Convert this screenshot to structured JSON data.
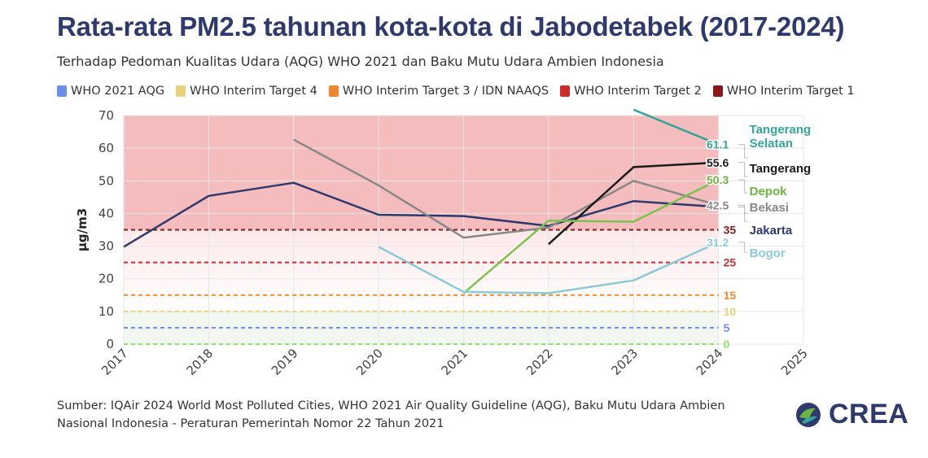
{
  "title": "Rata-rata PM2.5 tahunan kota-kota di Jabodetabek (2017-2024)",
  "subtitle": "Terhadap Pedoman Kualitas Udara (AQG) WHO 2021 dan Baku Mutu Udara Ambien Indonesia",
  "legend": [
    {
      "label": "WHO 2021 AQG",
      "color": "#6b8ee8"
    },
    {
      "label": "WHO Interim Target 4",
      "color": "#e8d27a"
    },
    {
      "label": "WHO Interim Target 3 / IDN NAAQS",
      "color": "#f0892e"
    },
    {
      "label": "WHO Interim Target 2",
      "color": "#cf2b2b"
    },
    {
      "label": "WHO Interim Target 1",
      "color": "#8a1a1a"
    }
  ],
  "source": "Sumber: IQAir 2024 World Most Polluted Cities, WHO 2021 Air Quality Guideline (AQG), Baku Mutu Udara Ambien Nasional Indonesia - Peraturan Pemerintah Nomor 22 Tahun 2021",
  "logo_text": "CREA",
  "chart_data": {
    "type": "line",
    "ylabel": "µg/m3",
    "xlabel": "",
    "xlim": [
      2017,
      2025
    ],
    "ylim": [
      0,
      70
    ],
    "x_ticks": [
      "2017",
      "2018",
      "2019",
      "2020",
      "2021",
      "2022",
      "2023",
      "2024",
      "2025"
    ],
    "y_ticks": [
      0,
      10,
      20,
      30,
      40,
      50,
      60,
      70
    ],
    "thresholds": [
      {
        "value": 0,
        "label": "0",
        "color": "#8ee06a"
      },
      {
        "value": 5,
        "label": "5",
        "color": "#6b8ee8"
      },
      {
        "value": 10,
        "label": "10",
        "color": "#e8d27a"
      },
      {
        "value": 15,
        "label": "15",
        "color": "#f0892e"
      },
      {
        "value": 25,
        "label": "25",
        "color": "#cf2b2b"
      },
      {
        "value": 35,
        "label": "35",
        "color": "#8a1a1a"
      }
    ],
    "series": [
      {
        "name": "Jakarta",
        "color": "#2e3a6e",
        "label_color": "#2e3a6e",
        "x": [
          2017,
          2018,
          2019,
          2020,
          2021,
          2022,
          2023,
          2024
        ],
        "y": [
          29.8,
          45.4,
          49.4,
          39.6,
          39.2,
          36.2,
          43.8,
          42.0
        ]
      },
      {
        "name": "Bekasi",
        "color": "#888888",
        "label_color": "#888888",
        "x": [
          2019,
          2020,
          2021,
          2022,
          2023,
          2024
        ],
        "y": [
          62.6,
          48.6,
          32.6,
          35.7,
          50.0,
          42.5
        ],
        "end_label": "42.5"
      },
      {
        "name": "Tangerang Selatan",
        "color": "#34a59a",
        "label_color": "#34a59a",
        "x": [
          2023,
          2024
        ],
        "y": [
          71.8,
          61.1
        ],
        "end_label": "61.1"
      },
      {
        "name": "Tangerang",
        "color": "#1a1a1a",
        "label_color": "#1a1a1a",
        "x": [
          2022,
          2023,
          2024
        ],
        "y": [
          30.6,
          54.2,
          55.6
        ],
        "end_label": "55.6"
      },
      {
        "name": "Depok",
        "color": "#7dc250",
        "label_color": "#6cb33f",
        "x": [
          2021,
          2022,
          2023,
          2024
        ],
        "y": [
          15.6,
          37.8,
          37.5,
          50.3
        ],
        "end_label": "50.3"
      },
      {
        "name": "Bogor",
        "color": "#8ccad8",
        "label_color": "#8ccad8",
        "x": [
          2020,
          2021,
          2022,
          2023,
          2024
        ],
        "y": [
          29.8,
          16.0,
          15.6,
          19.5,
          31.2
        ],
        "end_label": "31.2"
      }
    ]
  }
}
